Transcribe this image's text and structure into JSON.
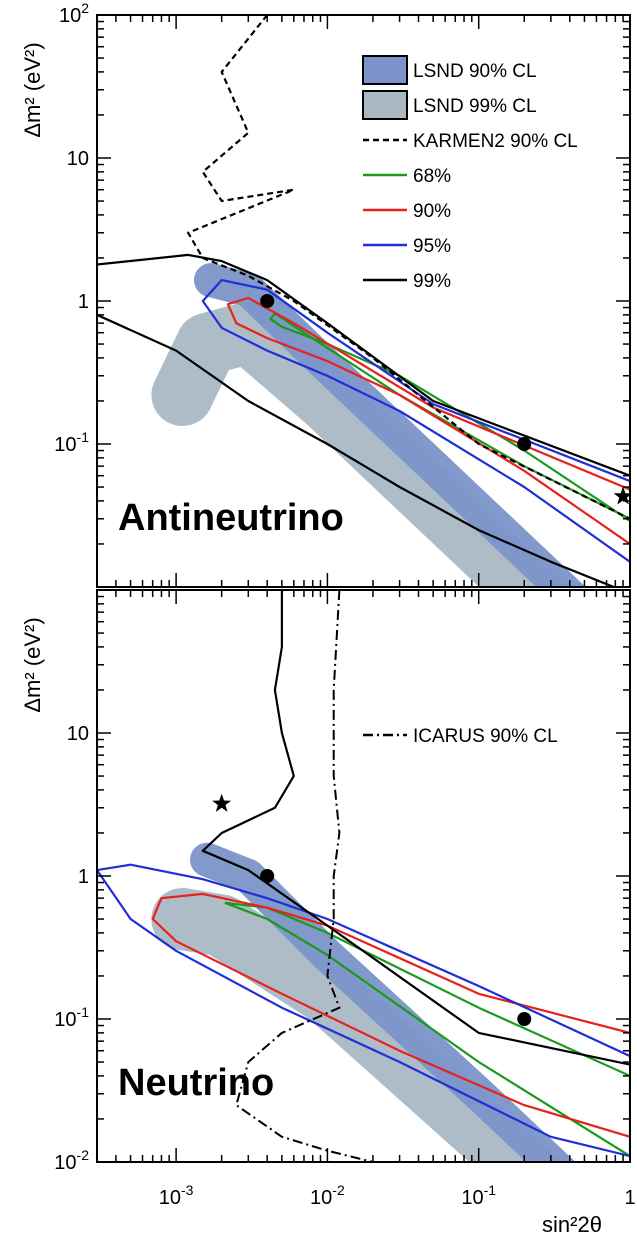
{
  "chart_data": [
    {
      "type": "contour",
      "panel_label": "Antineutrino",
      "xlabel": "",
      "ylabel": "Δm² (eV²)",
      "xscale": "log",
      "yscale": "log",
      "xlim": [
        0.0003,
        1
      ],
      "ylim": [
        0.01,
        100
      ],
      "xticks": [
        {
          "v": 0.001,
          "base": "10",
          "exp": "-3"
        },
        {
          "v": 0.01,
          "base": "10",
          "exp": "-2"
        },
        {
          "v": 0.1,
          "base": "10",
          "exp": "-1"
        },
        {
          "v": 1,
          "base": "1",
          "exp": ""
        }
      ],
      "yticks": [
        {
          "v": 0.1,
          "base": "10",
          "exp": "-1"
        },
        {
          "v": 1,
          "base": "1",
          "exp": ""
        },
        {
          "v": 10,
          "base": "10",
          "exp": ""
        },
        {
          "v": 100,
          "base": "10",
          "exp": "2"
        }
      ],
      "legend": [
        {
          "label": "LSND 90% CL",
          "kind": "box",
          "color": "#7b93c9"
        },
        {
          "label": "LSND 99% CL",
          "kind": "box",
          "color": "#aab8c4"
        },
        {
          "label": "KARMEN2 90% CL",
          "kind": "dashed",
          "color": "#000000"
        },
        {
          "label": "68%",
          "kind": "line",
          "color": "#1a9a1a"
        },
        {
          "label": "90%",
          "kind": "line",
          "color": "#e8211d"
        },
        {
          "label": "95%",
          "kind": "line",
          "color": "#1f2fd6"
        },
        {
          "label": "99%",
          "kind": "line",
          "color": "#000000"
        }
      ],
      "lsnd_99_band": [
        [
          0.0011,
          0.22
        ],
        [
          0.0016,
          0.5
        ],
        [
          0.003,
          0.6
        ],
        [
          0.01,
          0.2
        ],
        [
          0.1,
          0.02
        ],
        [
          1,
          0.002
        ]
      ],
      "lsnd_90_band": [
        [
          0.0017,
          1.4
        ],
        [
          0.003,
          1.2
        ],
        [
          0.01,
          0.35
        ],
        [
          0.1,
          0.035
        ],
        [
          1,
          0.0035
        ]
      ],
      "contours": [
        {
          "level": "68%",
          "color": "#1a9a1a",
          "style": "solid",
          "points": [
            [
              1,
              0.029
            ],
            [
              0.2,
              0.09
            ],
            [
              0.03,
              0.3
            ],
            [
              0.01,
              0.5
            ],
            [
              0.005,
              0.66
            ],
            [
              0.0042,
              0.75
            ],
            [
              0.0045,
              0.82
            ],
            [
              0.007,
              0.6
            ],
            [
              0.03,
              0.22
            ],
            [
              0.2,
              0.07
            ],
            [
              1,
              0.03
            ]
          ]
        },
        {
          "level": "90%",
          "color": "#e8211d",
          "style": "solid",
          "points": [
            [
              1,
              0.02
            ],
            [
              0.2,
              0.065
            ],
            [
              0.03,
              0.22
            ],
            [
              0.01,
              0.38
            ],
            [
              0.004,
              0.55
            ],
            [
              0.0025,
              0.7
            ],
            [
              0.0022,
              0.95
            ],
            [
              0.003,
              1.05
            ],
            [
              0.006,
              0.7
            ],
            [
              0.05,
              0.18
            ],
            [
              1,
              0.048
            ]
          ]
        },
        {
          "level": "95%",
          "color": "#1f2fd6",
          "style": "solid",
          "points": [
            [
              1,
              0.015
            ],
            [
              0.2,
              0.05
            ],
            [
              0.03,
              0.17
            ],
            [
              0.01,
              0.3
            ],
            [
              0.004,
              0.45
            ],
            [
              0.002,
              0.65
            ],
            [
              0.0015,
              1.0
            ],
            [
              0.002,
              1.4
            ],
            [
              0.004,
              1.2
            ],
            [
              0.01,
              0.6
            ],
            [
              0.05,
              0.19
            ],
            [
              1,
              0.055
            ]
          ]
        },
        {
          "level": "99%",
          "color": "#000000",
          "style": "solid",
          "points": [
            [
              0.0003,
              1.8
            ],
            [
              0.0012,
              2.1
            ],
            [
              0.002,
              1.9
            ],
            [
              0.004,
              1.4
            ],
            [
              0.01,
              0.7
            ],
            [
              0.05,
              0.2
            ],
            [
              1,
              0.06
            ]
          ]
        },
        {
          "level": "99%-lower",
          "color": "#000000",
          "style": "solid",
          "points": [
            [
              0.0003,
              0.8
            ],
            [
              0.001,
              0.45
            ],
            [
              0.003,
              0.2
            ],
            [
              0.01,
              0.1
            ],
            [
              0.03,
              0.05
            ],
            [
              0.1,
              0.025
            ],
            [
              0.3,
              0.015
            ],
            [
              1,
              0.009
            ]
          ]
        },
        {
          "level": "KARMEN2",
          "color": "#000000",
          "style": "dashed",
          "points": [
            [
              0.004,
              100
            ],
            [
              0.002,
              40
            ],
            [
              0.003,
              15
            ],
            [
              0.0015,
              8
            ],
            [
              0.002,
              5
            ],
            [
              0.006,
              6
            ],
            [
              0.0012,
              3
            ],
            [
              0.0015,
              2
            ],
            [
              0.003,
              1.5
            ],
            [
              0.006,
              1
            ],
            [
              0.02,
              0.4
            ],
            [
              0.1,
              0.1
            ],
            [
              1,
              0.03
            ]
          ]
        }
      ],
      "markers": [
        {
          "kind": "dot",
          "x": 0.004,
          "y": 1.0
        },
        {
          "kind": "dot",
          "x": 0.2,
          "y": 0.1
        },
        {
          "kind": "star",
          "x": 0.9,
          "y": 0.043
        }
      ]
    },
    {
      "type": "contour",
      "panel_label": "Neutrino",
      "xlabel": "sin²2θ",
      "ylabel": "Δm² (eV²)",
      "xscale": "log",
      "yscale": "log",
      "xlim": [
        0.0003,
        1
      ],
      "ylim": [
        0.01,
        100
      ],
      "xticks": [
        {
          "v": 0.001,
          "base": "10",
          "exp": "-3"
        },
        {
          "v": 0.01,
          "base": "10",
          "exp": "-2"
        },
        {
          "v": 0.1,
          "base": "10",
          "exp": "-1"
        },
        {
          "v": 1,
          "base": "1",
          "exp": ""
        }
      ],
      "yticks": [
        {
          "v": 0.01,
          "base": "10",
          "exp": "-2"
        },
        {
          "v": 0.1,
          "base": "10",
          "exp": "-1"
        },
        {
          "v": 1,
          "base": "1",
          "exp": ""
        },
        {
          "v": 10,
          "base": "10",
          "exp": ""
        }
      ],
      "legend": [
        {
          "label": "ICARUS 90% CL",
          "kind": "dashdot",
          "color": "#000000"
        }
      ],
      "lsnd_99_band": [
        [
          0.0011,
          0.5
        ],
        [
          0.002,
          0.45
        ],
        [
          0.01,
          0.15
        ],
        [
          0.1,
          0.017
        ],
        [
          1,
          0.002
        ]
      ],
      "lsnd_90_band": [
        [
          0.0016,
          1.3
        ],
        [
          0.003,
          1.0
        ],
        [
          0.01,
          0.28
        ],
        [
          0.1,
          0.03
        ],
        [
          1,
          0.003
        ]
      ],
      "contours": [
        {
          "level": "68%",
          "color": "#1a9a1a",
          "style": "solid",
          "points": [
            [
              0.0021,
              0.65
            ],
            [
              0.004,
              0.5
            ],
            [
              0.01,
              0.28
            ],
            [
              0.1,
              0.05
            ],
            [
              1,
              0.011
            ],
            [
              1,
              0.04
            ],
            [
              0.1,
              0.12
            ],
            [
              0.01,
              0.4
            ],
            [
              0.004,
              0.6
            ],
            [
              0.0021,
              0.65
            ]
          ]
        },
        {
          "level": "90%",
          "color": "#e8211d",
          "style": "solid",
          "points": [
            [
              1,
              0.08
            ],
            [
              0.1,
              0.15
            ],
            [
              0.01,
              0.45
            ],
            [
              0.004,
              0.6
            ],
            [
              0.0015,
              0.75
            ],
            [
              0.0008,
              0.7
            ],
            [
              0.0007,
              0.5
            ],
            [
              0.001,
              0.35
            ],
            [
              0.005,
              0.15
            ],
            [
              0.03,
              0.06
            ],
            [
              0.2,
              0.025
            ],
            [
              1,
              0.015
            ]
          ]
        },
        {
          "level": "95%",
          "color": "#1f2fd6",
          "style": "solid",
          "points": [
            [
              1,
              0.055
            ],
            [
              0.1,
              0.17
            ],
            [
              0.01,
              0.5
            ],
            [
              0.004,
              0.7
            ],
            [
              0.0015,
              0.95
            ],
            [
              0.0005,
              1.2
            ],
            [
              0.0003,
              1.1
            ],
            [
              0.0005,
              0.5
            ],
            [
              0.001,
              0.3
            ],
            [
              0.005,
              0.12
            ],
            [
              0.03,
              0.05
            ],
            [
              0.3,
              0.015
            ],
            [
              1,
              0.011
            ]
          ]
        },
        {
          "level": "99%",
          "color": "#000000",
          "style": "solid",
          "points": [
            [
              0.005,
              100
            ],
            [
              0.005,
              40
            ],
            [
              0.0045,
              20
            ],
            [
              0.005,
              10
            ],
            [
              0.006,
              5
            ],
            [
              0.0045,
              3
            ],
            [
              0.002,
              2
            ],
            [
              0.0015,
              1.5
            ],
            [
              0.003,
              1.1
            ],
            [
              0.01,
              0.45
            ],
            [
              0.1,
              0.08
            ],
            [
              1,
              0.048
            ]
          ]
        }
      ],
      "icarus": [
        [
          0.012,
          100
        ],
        [
          0.011,
          20
        ],
        [
          0.011,
          5
        ],
        [
          0.012,
          2
        ],
        [
          0.011,
          1
        ],
        [
          0.011,
          0.5
        ],
        [
          0.01,
          0.2
        ],
        [
          0.012,
          0.12
        ],
        [
          0.005,
          0.08
        ],
        [
          0.003,
          0.05
        ],
        [
          0.0025,
          0.025
        ],
        [
          0.005,
          0.015
        ],
        [
          0.01,
          0.012
        ],
        [
          0.02,
          0.01
        ]
      ],
      "markers": [
        {
          "kind": "dot",
          "x": 0.004,
          "y": 1.0
        },
        {
          "kind": "dot",
          "x": 0.2,
          "y": 0.1
        },
        {
          "kind": "star",
          "x": 0.002,
          "y": 3.2
        }
      ]
    }
  ]
}
